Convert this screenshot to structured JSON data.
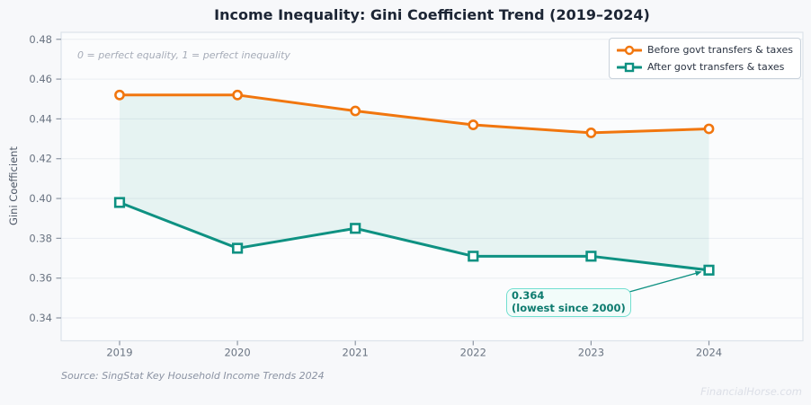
{
  "figure": {
    "source": "Source: SingStat Key Household Income Trends 2024",
    "watermark": "FinancialHorse.com"
  },
  "chart_data": {
    "type": "line",
    "title": "Income Inequality: Gini Coefficient Trend (2019–2024)",
    "ylabel": "Gini Coefficient",
    "xlabel": "",
    "categories": [
      "2019",
      "2020",
      "2021",
      "2022",
      "2023",
      "2024"
    ],
    "series": [
      {
        "name": "Before govt transfers & taxes",
        "color": "#f1760e",
        "marker": "circle",
        "values": [
          0.452,
          0.452,
          0.444,
          0.437,
          0.433,
          0.435
        ]
      },
      {
        "name": "After govt transfers & taxes",
        "color": "#0e9182",
        "marker": "square",
        "values": [
          0.398,
          0.375,
          0.385,
          0.371,
          0.371,
          0.364
        ]
      }
    ],
    "yticks": [
      0.34,
      0.36,
      0.38,
      0.4,
      0.42,
      0.44,
      0.46,
      0.48
    ],
    "ylim": [
      0.3285,
      0.4835
    ],
    "grid": true,
    "legend_position": "top-right",
    "fill_between_series": true,
    "fill_color": "rgba(14,145,130,0.085)",
    "annotations": {
      "equality_note": "0 = perfect equality, 1 = perfect inequality",
      "lowest_point": {
        "value": "0.364",
        "caption": "(lowest since 2000)",
        "target_year": "2024"
      }
    }
  }
}
